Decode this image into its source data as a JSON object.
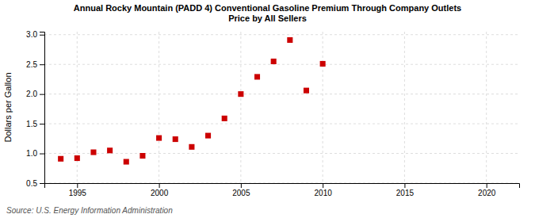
{
  "chart_data": {
    "type": "scatter",
    "title": "Annual Rocky Mountain (PADD 4) Conventional Gasoline Premium Through Company Outlets\nPrice by All Sellers",
    "y_label": "Dollars per Gallon",
    "source": "Source: U.S. Energy Information Administration",
    "x": [
      1994,
      1995,
      1996,
      1997,
      1998,
      1999,
      2000,
      2001,
      2002,
      2003,
      2004,
      2005,
      2006,
      2007,
      2008,
      2009,
      2010
    ],
    "values": [
      0.91,
      0.92,
      1.02,
      1.05,
      0.86,
      0.96,
      1.26,
      1.24,
      1.11,
      1.3,
      1.59,
      2.0,
      2.29,
      2.55,
      2.91,
      2.06,
      2.51
    ],
    "color": "#cc0000",
    "marker": "square",
    "xlim": [
      1993,
      2022
    ],
    "ylim": [
      0.5,
      3.05
    ],
    "xticks": [
      1995,
      2000,
      2005,
      2010,
      2015,
      2020
    ],
    "yticks": [
      0.5,
      {
        "value": 1.0,
        "label": "1.0"
      },
      1.5,
      {
        "value": 2.0,
        "label": "2.0"
      },
      2.5,
      {
        "value": 3.0,
        "label": "3.0"
      }
    ],
    "grid": true
  }
}
